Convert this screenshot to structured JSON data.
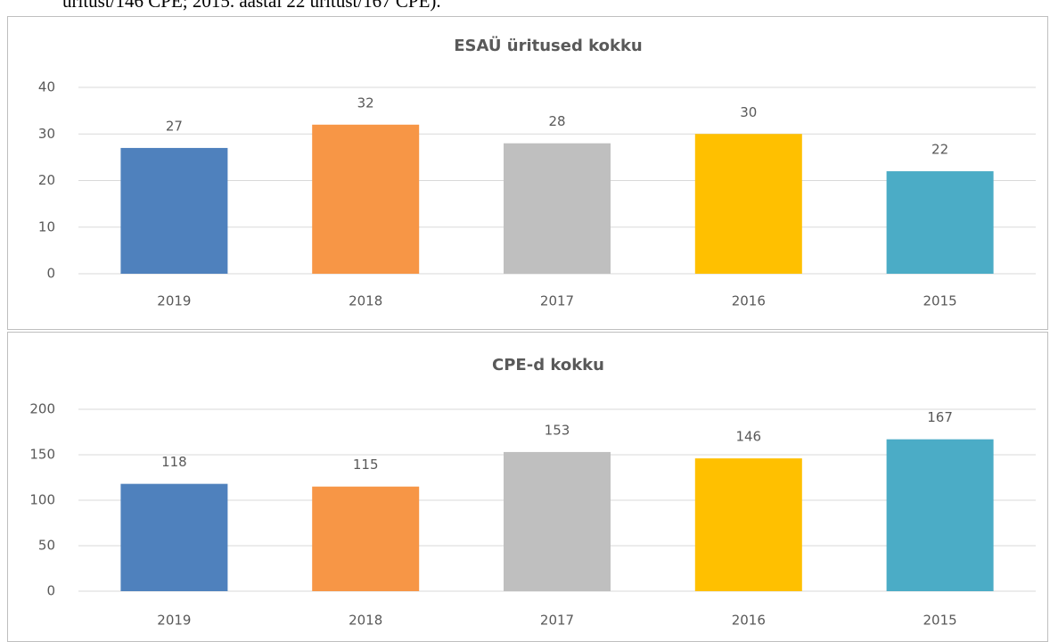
{
  "intro_text": "üritust/146 CPE; 2015. aastal 22 üritust/167 CPE).",
  "chart_data": [
    {
      "type": "bar",
      "title": "ESAÜ üritused kokku",
      "categories": [
        "2019",
        "2018",
        "2017",
        "2016",
        "2015"
      ],
      "values": [
        27,
        32,
        28,
        30,
        22
      ],
      "colors": [
        "#4f81bd",
        "#f79646",
        "#bfbfbf",
        "#ffc000",
        "#4bacc6"
      ],
      "ylim": [
        0,
        40
      ],
      "yticks": [
        0,
        10,
        20,
        30,
        40
      ],
      "grid": true
    },
    {
      "type": "bar",
      "title": "CPE-d kokku",
      "categories": [
        "2019",
        "2018",
        "2017",
        "2016",
        "2015"
      ],
      "values": [
        118,
        115,
        153,
        146,
        167
      ],
      "colors": [
        "#4f81bd",
        "#f79646",
        "#bfbfbf",
        "#ffc000",
        "#4bacc6"
      ],
      "ylim": [
        0,
        200
      ],
      "yticks": [
        0,
        50,
        100,
        150,
        200
      ],
      "grid": true
    }
  ]
}
